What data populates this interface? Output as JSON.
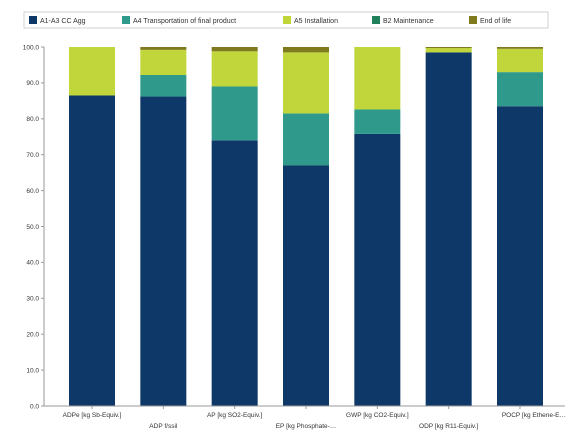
{
  "chart_data": {
    "type": "bar",
    "stacked": true,
    "title": "",
    "xlabel": "",
    "ylabel": "",
    "ylim": [
      0,
      100
    ],
    "yticks": [
      "0.0",
      "10.0",
      "20.0",
      "30.0",
      "40.0",
      "50.0",
      "60.0",
      "70.0",
      "80.0",
      "90.0",
      "100.0"
    ],
    "grid": false,
    "legend_position": "top",
    "categories": [
      "ADPe [kg Sb-Equiv.]",
      "ADP f/ssil",
      "AP [kg SO2-Equiv.]",
      "EP [kg Phosphate-…",
      "GWP [kg CO2-Equiv.]",
      "ODP [kg R11-Equiv.]",
      "POCP [kg Ethene-E…"
    ],
    "series": [
      {
        "name": "A1-A3 CC Agg",
        "color": "#0d3868",
        "values": [
          86.5,
          86.2,
          74.0,
          67.0,
          75.8,
          98.5,
          83.5
        ]
      },
      {
        "name": "A4 Transportation of final product",
        "color": "#2f9a8b",
        "values": [
          0.0,
          6.0,
          15.0,
          14.5,
          6.8,
          0.0,
          9.5
        ]
      },
      {
        "name": "A5 Installation",
        "color": "#c0d63a",
        "values": [
          13.5,
          7.0,
          9.8,
          17.0,
          17.4,
          1.2,
          6.5
        ]
      },
      {
        "name": "B2 Maintenance",
        "color": "#20805c",
        "values": [
          0.0,
          0.0,
          0.0,
          0.0,
          0.0,
          0.0,
          0.0
        ]
      },
      {
        "name": "End of life",
        "color": "#7f7a1e",
        "values": [
          0.0,
          0.8,
          1.2,
          1.5,
          0.0,
          0.3,
          0.5
        ]
      }
    ]
  }
}
